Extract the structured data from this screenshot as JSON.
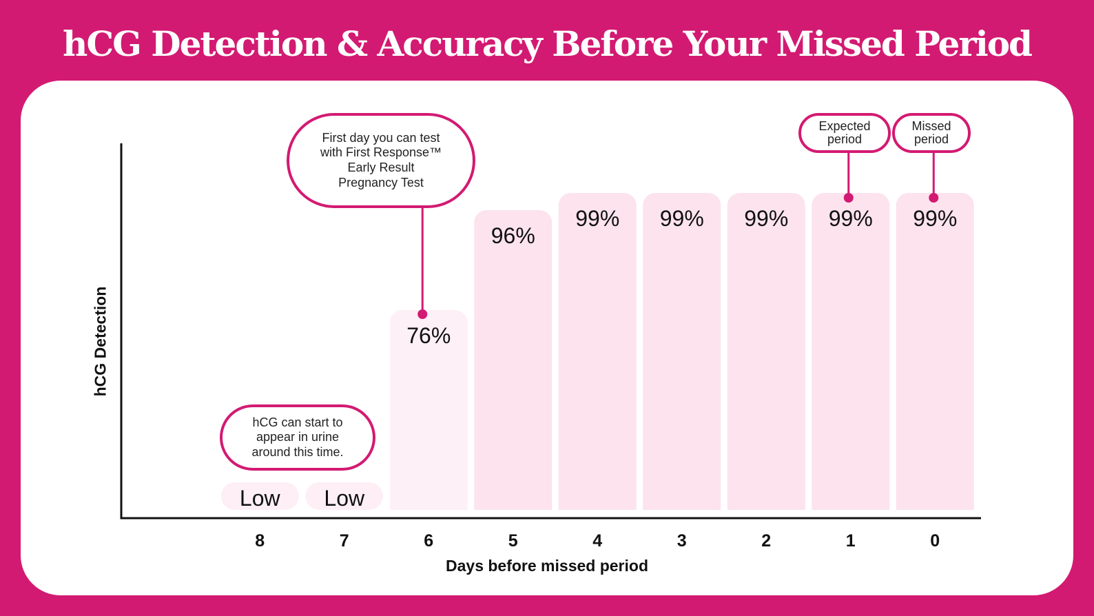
{
  "title": "hCG Detection & Accuracy Before Your Missed Period",
  "colors": {
    "background": "#d31a72",
    "panel": "#ffffff",
    "bar_low": "#fdeff5",
    "bar_mid": "#fdf0f6",
    "bar_high": "#fce3ee",
    "accent": "#d31a72",
    "axis": "#111111"
  },
  "chart_data": {
    "type": "bar",
    "xlabel": "Days before missed period",
    "ylabel": "hCG Detection",
    "categories": [
      "8",
      "7",
      "6",
      "5",
      "4",
      "3",
      "2",
      "1",
      "0"
    ],
    "values": [
      null,
      null,
      76,
      96,
      99,
      99,
      99,
      99,
      99
    ],
    "labels": [
      "Low",
      "Low",
      "76%",
      "96%",
      "99%",
      "99%",
      "99%",
      "99%",
      "99%"
    ],
    "unit": "%",
    "legend": "none",
    "grid": false
  },
  "callouts": {
    "first_day": "First day you can test\nwith First Response™\nEarly Result\nPregnancy Test",
    "hcg_start": "hCG can start to\nappear in urine\naround this time.",
    "expected": "Expected\nperiod",
    "missed": "Missed\nperiod"
  }
}
